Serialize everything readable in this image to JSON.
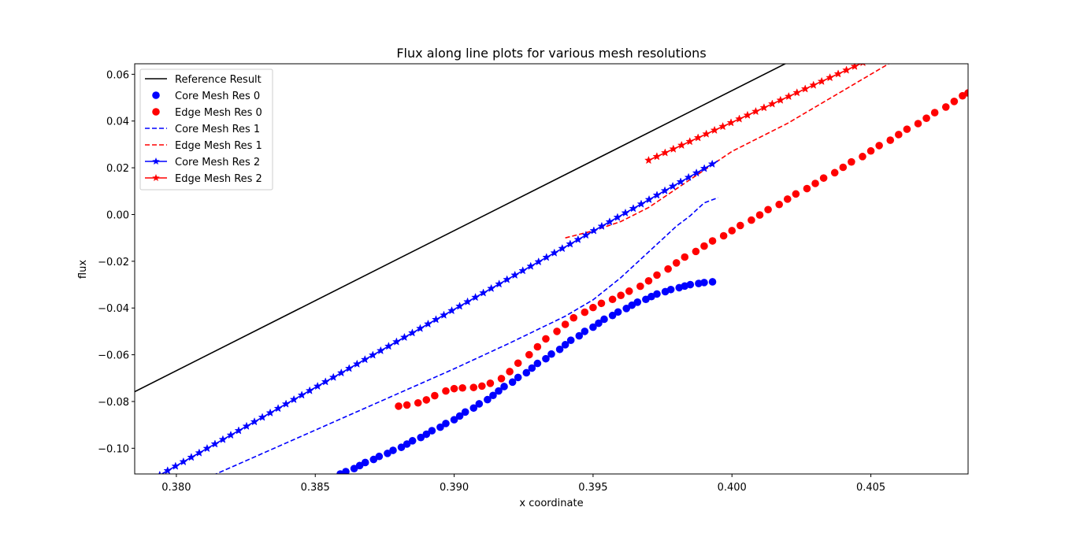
{
  "chart_data": {
    "type": "line",
    "title": "Flux along line plots for various mesh resolutions",
    "xlabel": "x coordinate",
    "ylabel": "flux",
    "xlim": [
      0.3785,
      0.4085
    ],
    "ylim": [
      -0.111,
      0.0645
    ],
    "xticks": [
      0.38,
      0.385,
      0.39,
      0.395,
      0.4,
      0.405
    ],
    "xtick_labels": [
      "0.380",
      "0.385",
      "0.390",
      "0.395",
      "0.400",
      "0.405"
    ],
    "yticks": [
      -0.1,
      -0.08,
      -0.06,
      -0.04,
      -0.02,
      0.0,
      0.02,
      0.04,
      0.06
    ],
    "ytick_labels": [
      "−0.10",
      "−0.08",
      "−0.06",
      "−0.04",
      "−0.02",
      "0.00",
      "0.02",
      "0.04",
      "0.06"
    ],
    "grid": false,
    "legend_position": "top-left",
    "series": [
      {
        "name": "Reference Result",
        "color": "#000000",
        "style": "solid",
        "marker": "none",
        "x": [
          0.3785,
          0.4021
        ],
        "y": [
          -0.0758,
          0.0656
        ]
      },
      {
        "name": "Core Mesh Res 0",
        "color": "#0000ff",
        "style": "none",
        "marker": "circle",
        "x": [
          0.3859,
          0.3861,
          0.3864,
          0.3866,
          0.3868,
          0.3871,
          0.3873,
          0.3876,
          0.3878,
          0.3881,
          0.3883,
          0.3885,
          0.3888,
          0.389,
          0.3892,
          0.3895,
          0.3897,
          0.39,
          0.3902,
          0.3904,
          0.3907,
          0.3909,
          0.3912,
          0.3914,
          0.3916,
          0.3918,
          0.3921,
          0.3923,
          0.3926,
          0.3928,
          0.393,
          0.3933,
          0.3935,
          0.3938,
          0.394,
          0.3942,
          0.3945,
          0.3947,
          0.395,
          0.3952,
          0.3954,
          0.3957,
          0.3959,
          0.3962,
          0.3964,
          0.3966,
          0.3969,
          0.3971,
          0.3973,
          0.3976,
          0.3978,
          0.3981,
          0.3983,
          0.3985,
          0.3988,
          0.399,
          0.3993
        ],
        "y": [
          -0.111,
          -0.11,
          -0.1087,
          -0.1074,
          -0.1061,
          -0.1048,
          -0.1035,
          -0.1022,
          -0.1009,
          -0.0996,
          -0.0982,
          -0.0968,
          -0.0954,
          -0.094,
          -0.0925,
          -0.091,
          -0.0894,
          -0.0878,
          -0.0862,
          -0.0845,
          -0.0828,
          -0.081,
          -0.0792,
          -0.0774,
          -0.0755,
          -0.0736,
          -0.0717,
          -0.0697,
          -0.0677,
          -0.0657,
          -0.0637,
          -0.0617,
          -0.0597,
          -0.0577,
          -0.0557,
          -0.0538,
          -0.0519,
          -0.05,
          -0.0482,
          -0.0465,
          -0.0448,
          -0.0432,
          -0.0417,
          -0.0402,
          -0.0388,
          -0.0375,
          -0.0363,
          -0.0351,
          -0.034,
          -0.033,
          -0.0321,
          -0.0313,
          -0.0306,
          -0.03,
          -0.0295,
          -0.0291,
          -0.0288
        ]
      },
      {
        "name": "Edge Mesh Res 0",
        "color": "#ff0000",
        "style": "none",
        "marker": "circle",
        "x": [
          0.388,
          0.3883,
          0.3887,
          0.389,
          0.3893,
          0.3897,
          0.39,
          0.3903,
          0.3907,
          0.391,
          0.3913,
          0.3917,
          0.392,
          0.3923,
          0.3927,
          0.393,
          0.3933,
          0.3937,
          0.394,
          0.3943,
          0.3947,
          0.395,
          0.3953,
          0.3957,
          0.396,
          0.3963,
          0.3967,
          0.397,
          0.3973,
          0.3977,
          0.398,
          0.3983,
          0.3987,
          0.399,
          0.3993,
          0.3997,
          0.4,
          0.4003,
          0.4007,
          0.401,
          0.4013,
          0.4017,
          0.402,
          0.4023,
          0.4027,
          0.403,
          0.4033,
          0.4037,
          0.404,
          0.4043,
          0.4047,
          0.405,
          0.4053,
          0.4057,
          0.406,
          0.4063,
          0.4067,
          0.407,
          0.4073,
          0.4077,
          0.408,
          0.4083,
          0.4085
        ],
        "y": [
          -0.082,
          -0.0815,
          -0.0806,
          -0.0793,
          -0.0775,
          -0.0755,
          -0.0745,
          -0.0742,
          -0.074,
          -0.0734,
          -0.0722,
          -0.0702,
          -0.0672,
          -0.0636,
          -0.06,
          -0.0566,
          -0.0532,
          -0.05,
          -0.047,
          -0.0442,
          -0.0418,
          -0.0398,
          -0.038,
          -0.0363,
          -0.0346,
          -0.0328,
          -0.0307,
          -0.0284,
          -0.0259,
          -0.0233,
          -0.0207,
          -0.0182,
          -0.0158,
          -0.0135,
          -0.0113,
          -0.0091,
          -0.0069,
          -0.0047,
          -0.0024,
          -0.0002,
          0.0021,
          0.0043,
          0.0066,
          0.0088,
          0.0111,
          0.0133,
          0.0156,
          0.0179,
          0.0202,
          0.0225,
          0.0248,
          0.0272,
          0.0295,
          0.0318,
          0.0342,
          0.0365,
          0.0389,
          0.0412,
          0.0436,
          0.046,
          0.0484,
          0.0508,
          0.052
        ]
      },
      {
        "name": "Core Mesh Res 1",
        "color": "#0000ff",
        "style": "dashed",
        "marker": "none",
        "x": [
          0.3785,
          0.38,
          0.382,
          0.384,
          0.386,
          0.388,
          0.39,
          0.392,
          0.394,
          0.395,
          0.396,
          0.397,
          0.3975,
          0.398,
          0.3985,
          0.399,
          0.3995
        ],
        "y": [
          -0.126,
          -0.1185,
          -0.108,
          -0.0975,
          -0.087,
          -0.0765,
          -0.066,
          -0.055,
          -0.0435,
          -0.0365,
          -0.027,
          -0.016,
          -0.0105,
          -0.005,
          -0.0005,
          0.005,
          0.0072
        ]
      },
      {
        "name": "Edge Mesh Res 1",
        "color": "#ff0000",
        "style": "dashed",
        "marker": "none",
        "x": [
          0.394,
          0.395,
          0.396,
          0.397,
          0.398,
          0.399,
          0.4,
          0.401,
          0.402,
          0.403,
          0.404,
          0.405,
          0.406,
          0.407,
          0.4085
        ],
        "y": [
          -0.01,
          -0.007,
          -0.003,
          0.003,
          0.011,
          0.019,
          0.027,
          0.033,
          0.039,
          0.046,
          0.053,
          0.06,
          0.067,
          0.074,
          0.084
        ]
      },
      {
        "name": "Core Mesh Res 2",
        "color": "#0000ff",
        "style": "solid",
        "marker": "star",
        "x": [
          0.3785,
          0.3794,
          0.3995
        ],
        "y": [
          -0.116,
          -0.1115,
          0.023
        ]
      },
      {
        "name": "Edge Mesh Res 2",
        "color": "#ff0000",
        "style": "solid",
        "marker": "star",
        "x": [
          0.397,
          0.4085
        ],
        "y": [
          0.0232,
          0.0855
        ]
      }
    ]
  }
}
